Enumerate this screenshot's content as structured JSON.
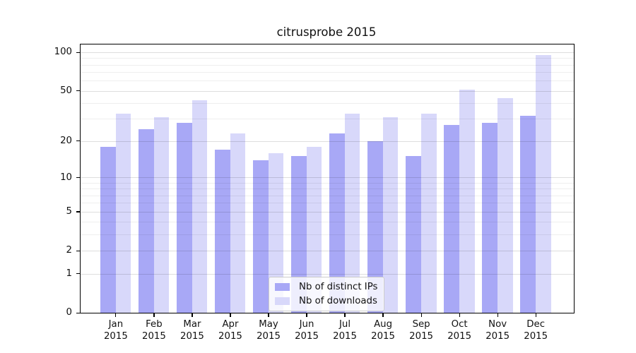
{
  "chart_data": {
    "type": "bar",
    "title": "citrusprobe 2015",
    "categories": [
      "Jan",
      "Feb",
      "Mar",
      "Apr",
      "May",
      "Jun",
      "Jul",
      "Aug",
      "Sep",
      "Oct",
      "Nov",
      "Dec"
    ],
    "x_tick_second_line": "2015",
    "series": [
      {
        "name": "Nb of distinct IPs",
        "color": "#a8a8f6",
        "values": [
          18,
          25,
          28,
          17,
          14,
          15,
          23,
          20,
          15,
          27,
          28,
          32
        ]
      },
      {
        "name": "Nb of downloads",
        "color": "#d8d8fa",
        "values": [
          33,
          31,
          42,
          23,
          16,
          18,
          33,
          31,
          33,
          51,
          44,
          95
        ]
      }
    ],
    "y_axis": {
      "scale": "log1p",
      "max": 115,
      "tick_values": [
        100,
        50,
        20,
        10,
        5,
        2,
        1,
        0
      ],
      "tick_labels": [
        "100",
        "50",
        "20",
        "10",
        "5",
        "2",
        "1",
        "0"
      ],
      "minor_gridline_values": [
        3,
        4,
        6,
        7,
        8,
        9,
        30,
        40,
        60,
        70,
        80,
        90
      ]
    },
    "legend": {
      "position": "lower center",
      "entries": [
        "Nb of distinct IPs",
        "Nb of downloads"
      ]
    },
    "grid": true
  }
}
